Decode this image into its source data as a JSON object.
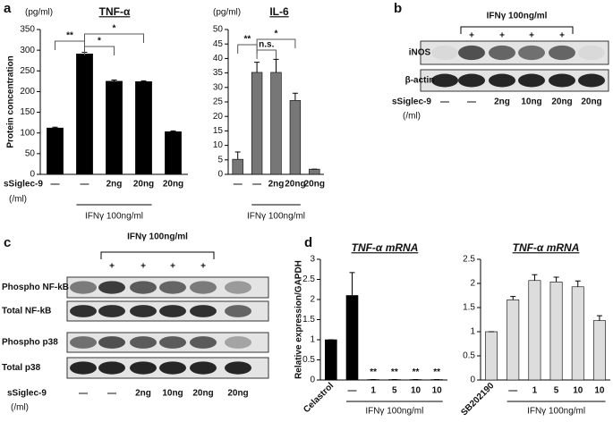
{
  "panel_labels": [
    "a",
    "b",
    "c",
    "d"
  ],
  "chart_data": [
    {
      "type": "bar",
      "title": "TNF-α",
      "unit": "(pg/ml)",
      "y_label": "Protein concentration",
      "categories": [
        "—",
        "—",
        "2ng",
        "20ng",
        "20ng"
      ],
      "values": [
        112,
        291,
        225,
        224,
        103
      ],
      "errors": [
        2,
        4,
        3,
        2,
        2
      ],
      "color": "#000000",
      "ylim": [
        0,
        350
      ],
      "yticks": [
        0,
        50,
        100,
        150,
        200,
        250,
        300,
        350
      ],
      "annotations": [
        "**",
        "*",
        "*"
      ],
      "group_label": "IFNγ 100ng/ml",
      "row_label": "sSiglec-9",
      "row_unit": "(/ml)"
    },
    {
      "type": "bar",
      "title": "IL-6",
      "unit": "(pg/ml)",
      "categories": [
        "—",
        "—",
        "2ng",
        "20ng",
        "20ng"
      ],
      "values": [
        5.2,
        35.2,
        35.2,
        25.5,
        1.8
      ],
      "errors": [
        2.5,
        3.5,
        4.5,
        2.5,
        0
      ],
      "color": "#777777",
      "ylim": [
        0,
        50
      ],
      "yticks": [
        0,
        5,
        10,
        15,
        20,
        25,
        30,
        35,
        40,
        45,
        50
      ],
      "annotations": [
        "**",
        "n.s.",
        "*"
      ],
      "group_label": "IFNγ 100ng/ml"
    },
    {
      "type": "bar",
      "title": "TNF-α mRNA",
      "y_label": "Relative expression/GAPDH",
      "categories": [
        "Celastrol",
        "—",
        "1",
        "5",
        "10",
        "10"
      ],
      "values": [
        1,
        2.1,
        0.01,
        0.01,
        0.01,
        0.01
      ],
      "errors": [
        0,
        0.57,
        0,
        0,
        0,
        0
      ],
      "color": "#000000",
      "ylim": [
        0,
        3
      ],
      "yticks": [
        0,
        0.5,
        1,
        1.5,
        2,
        2.5,
        3
      ],
      "annotations": [
        "**",
        "**",
        "**",
        "**"
      ],
      "group_label": "IFNγ 100ng/ml"
    },
    {
      "type": "bar",
      "title": "TNF-α mRNA",
      "categories": [
        "SB202190",
        "—",
        "1",
        "5",
        "10",
        "10"
      ],
      "values": [
        1,
        1.66,
        2.06,
        2.03,
        1.93,
        1.23
      ],
      "errors": [
        0,
        0.07,
        0.12,
        0.1,
        0.12,
        0.1
      ],
      "color": "#dddddd",
      "ylim": [
        0,
        2.5
      ],
      "yticks": [
        0,
        0.5,
        1,
        1.5,
        2,
        2.5
      ],
      "group_label": "IFNγ 100ng/ml"
    }
  ],
  "blots": [
    {
      "header": "IFNγ 100ng/ml",
      "lane_marks": [
        "+",
        "+",
        "+",
        "+"
      ],
      "rows": [
        "iNOS",
        "β-actin"
      ],
      "row_label": "sSiglec-9",
      "row_unit": "(/ml)",
      "lanes": [
        "—",
        "—",
        "2ng",
        "10ng",
        "20ng",
        "20ng"
      ]
    },
    {
      "header": "IFNγ 100ng/ml",
      "lane_marks": [
        "+",
        "+",
        "+",
        "+"
      ],
      "rows": [
        "Phospho NF-kB",
        "Total NF-kB",
        "Phospho p38",
        "Total p38"
      ],
      "row_label": "sSiglec-9",
      "row_unit": "(/ml)",
      "lanes": [
        "—",
        "—",
        "2ng",
        "10ng",
        "20ng",
        "20ng"
      ]
    }
  ]
}
